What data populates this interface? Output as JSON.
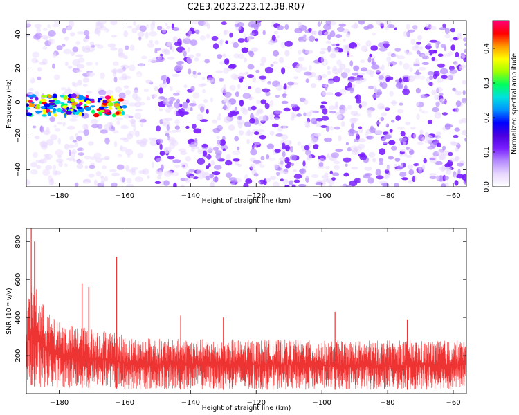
{
  "figure": {
    "title": "C2E3.2023.223.12.38.R07"
  },
  "chart_data": [
    {
      "type": "heatmap",
      "xlabel": "Height of straight line (km)",
      "ylabel": "Frequency (Hz)",
      "xlim": [
        -190,
        -56
      ],
      "ylim": [
        -50,
        48
      ],
      "xticks": [
        -180,
        -160,
        -140,
        -120,
        -100,
        -80,
        -60
      ],
      "yticks": [
        -40,
        -20,
        0,
        20,
        40
      ],
      "colorbar": {
        "label": "Normalized spectral amplitude",
        "range": [
          0,
          0.48
        ],
        "ticks": [
          0.0,
          0.1,
          0.2,
          0.3,
          0.4
        ],
        "tick_labels": [
          "0.0",
          "0.1",
          "0.2",
          "0.3",
          "0.4"
        ],
        "colormap": [
          "#ffffff",
          "#e8d8ff",
          "#b58cff",
          "#7a1fff",
          "#4b00e0",
          "#0000ff",
          "#0090ff",
          "#00e0e0",
          "#00ff60",
          "#a0ff00",
          "#ffff00",
          "#ff9900",
          "#ff0000",
          "#ff0077"
        ]
      },
      "features": {
        "strong_band": {
          "x_range": [
            -190,
            -160
          ],
          "frequency_hz": -2,
          "amplitude_range": [
            0.2,
            0.48
          ]
        },
        "background_amplitude_range": [
          0.0,
          0.12
        ]
      }
    },
    {
      "type": "line",
      "xlabel": "Height of straight line (km)",
      "ylabel": "SNR (10 * v/v)",
      "xlim": [
        -190,
        -56
      ],
      "ylim": [
        0,
        870
      ],
      "xticks": [
        -180,
        -160,
        -140,
        -120,
        -100,
        -80,
        -60
      ],
      "yticks": [
        200,
        400,
        600,
        800
      ],
      "color": "#ee3333",
      "series": [
        {
          "envelope": {
            "x": [
              -190,
              -188,
              -186,
              -184,
              -182,
              -180,
              -176,
              -172,
              -168,
              -164,
              -162,
              -160,
              -150,
              -140,
              -130,
              -120,
              -110,
              -100,
              -90,
              -80,
              -70,
              -60,
              -56
            ],
            "upper_typical": [
              470,
              600,
              520,
              440,
              400,
              380,
              360,
              350,
              340,
              330,
              320,
              300,
              290,
              290,
              285,
              285,
              285,
              280,
              280,
              280,
              280,
              280,
              280
            ],
            "lower_typical": [
              60,
              40,
              30,
              30,
              30,
              30,
              30,
              30,
              30,
              30,
              25,
              20,
              20,
              20,
              20,
              20,
              20,
              20,
              20,
              20,
              20,
              20,
              20
            ],
            "spikes": [
              [
                -188.5,
                870
              ],
              [
                -187.5,
                800
              ],
              [
                -173,
                580
              ],
              [
                -171,
                560
              ],
              [
                -162.5,
                720
              ],
              [
                -143,
                410
              ],
              [
                -130,
                400
              ],
              [
                -96,
                430
              ],
              [
                -74,
                390
              ]
            ]
          }
        }
      ]
    }
  ]
}
